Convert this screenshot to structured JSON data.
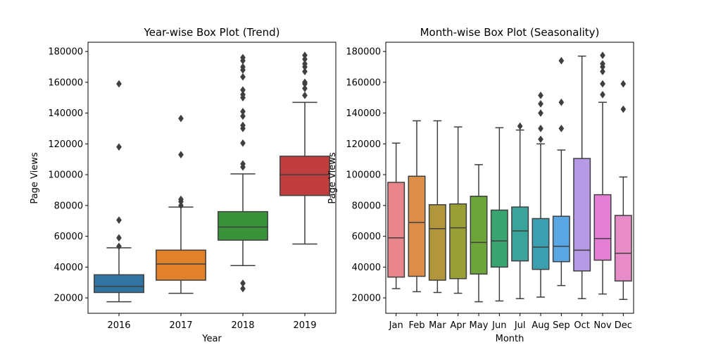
{
  "chart_data": [
    {
      "type": "box",
      "title": "Year-wise Box Plot (Trend)",
      "xlabel": "Year",
      "ylabel": "Page Views",
      "ylim": [
        10000,
        186000
      ],
      "yticks": [
        20000,
        40000,
        60000,
        80000,
        100000,
        120000,
        140000,
        160000,
        180000
      ],
      "grid": false,
      "categories": [
        "2016",
        "2017",
        "2018",
        "2019"
      ],
      "colors": [
        "#3274a1",
        "#e1812c",
        "#3a923a",
        "#c03d3e"
      ],
      "boxes": [
        {
          "min": 17500,
          "q1": 23500,
          "median": 27500,
          "q3": 35000,
          "max": 52500,
          "outliers": [
            53500,
            59000,
            70500,
            118000,
            159000
          ]
        },
        {
          "min": 23000,
          "q1": 31500,
          "median": 42000,
          "q3": 51000,
          "max": 79000,
          "outliers": [
            80000,
            82500,
            84000,
            113000,
            136500
          ]
        },
        {
          "min": 41000,
          "q1": 57500,
          "median": 66000,
          "q3": 76000,
          "max": 100500,
          "outliers": [
            26000,
            29500,
            105000,
            107000,
            120500,
            130000,
            132000,
            138000,
            141000,
            150000,
            152000,
            155000,
            163500,
            168000,
            170000,
            174000,
            176000
          ]
        },
        {
          "min": 55000,
          "q1": 86500,
          "median": 100000,
          "q3": 112000,
          "max": 147000,
          "outliers": [
            151500,
            156000,
            159000,
            160000,
            167000,
            170000,
            172000,
            175000,
            177500
          ]
        }
      ]
    },
    {
      "type": "box",
      "title": "Month-wise Box Plot (Seasonality)",
      "xlabel": "Month",
      "ylabel": "Page Views",
      "ylim": [
        10000,
        186000
      ],
      "yticks": [
        20000,
        40000,
        60000,
        80000,
        100000,
        120000,
        140000,
        160000,
        180000
      ],
      "grid": false,
      "categories": [
        "Jan",
        "Feb",
        "Mar",
        "Apr",
        "May",
        "Jun",
        "Jul",
        "Aug",
        "Sep",
        "Oct",
        "Nov",
        "Dec"
      ],
      "colors": [
        "#e8868c",
        "#dd8f4a",
        "#b2963c",
        "#9a9e37",
        "#6ea53b",
        "#3aa471",
        "#3aa39a",
        "#3b9fb0",
        "#5aa6e2",
        "#b59ae6",
        "#e57fd6",
        "#e88cc7"
      ],
      "boxes": [
        {
          "min": 26000,
          "q1": 33500,
          "median": 59000,
          "q3": 95000,
          "max": 120500,
          "outliers": []
        },
        {
          "min": 24000,
          "q1": 34000,
          "median": 69000,
          "q3": 99000,
          "max": 135000,
          "outliers": []
        },
        {
          "min": 23500,
          "q1": 31500,
          "median": 65000,
          "q3": 80500,
          "max": 135000,
          "outliers": []
        },
        {
          "min": 23000,
          "q1": 32500,
          "median": 65500,
          "q3": 81000,
          "max": 131000,
          "outliers": []
        },
        {
          "min": 17500,
          "q1": 35500,
          "median": 56000,
          "q3": 86000,
          "max": 106500,
          "outliers": []
        },
        {
          "min": 18000,
          "q1": 40000,
          "median": 57000,
          "q3": 77000,
          "max": 130500,
          "outliers": []
        },
        {
          "min": 19500,
          "q1": 44000,
          "median": 63500,
          "q3": 79000,
          "max": 129000,
          "outliers": [
            131500
          ]
        },
        {
          "min": 20500,
          "q1": 38500,
          "median": 53000,
          "q3": 71500,
          "max": 120000,
          "outliers": [
            123000,
            130000,
            140000,
            146000,
            151500
          ]
        },
        {
          "min": 28000,
          "q1": 43500,
          "median": 53500,
          "q3": 73000,
          "max": 116000,
          "outliers": [
            130000,
            147000,
            174000
          ]
        },
        {
          "min": 19500,
          "q1": 37500,
          "median": 51000,
          "q3": 110500,
          "max": 177000,
          "outliers": []
        },
        {
          "min": 22500,
          "q1": 44500,
          "median": 58500,
          "q3": 87000,
          "max": 147000,
          "outliers": [
            152000,
            159000,
            167000,
            170000,
            172000,
            177500
          ]
        },
        {
          "min": 19000,
          "q1": 31000,
          "median": 49000,
          "q3": 73500,
          "max": 98500,
          "outliers": [
            142500,
            159000
          ]
        }
      ]
    }
  ]
}
